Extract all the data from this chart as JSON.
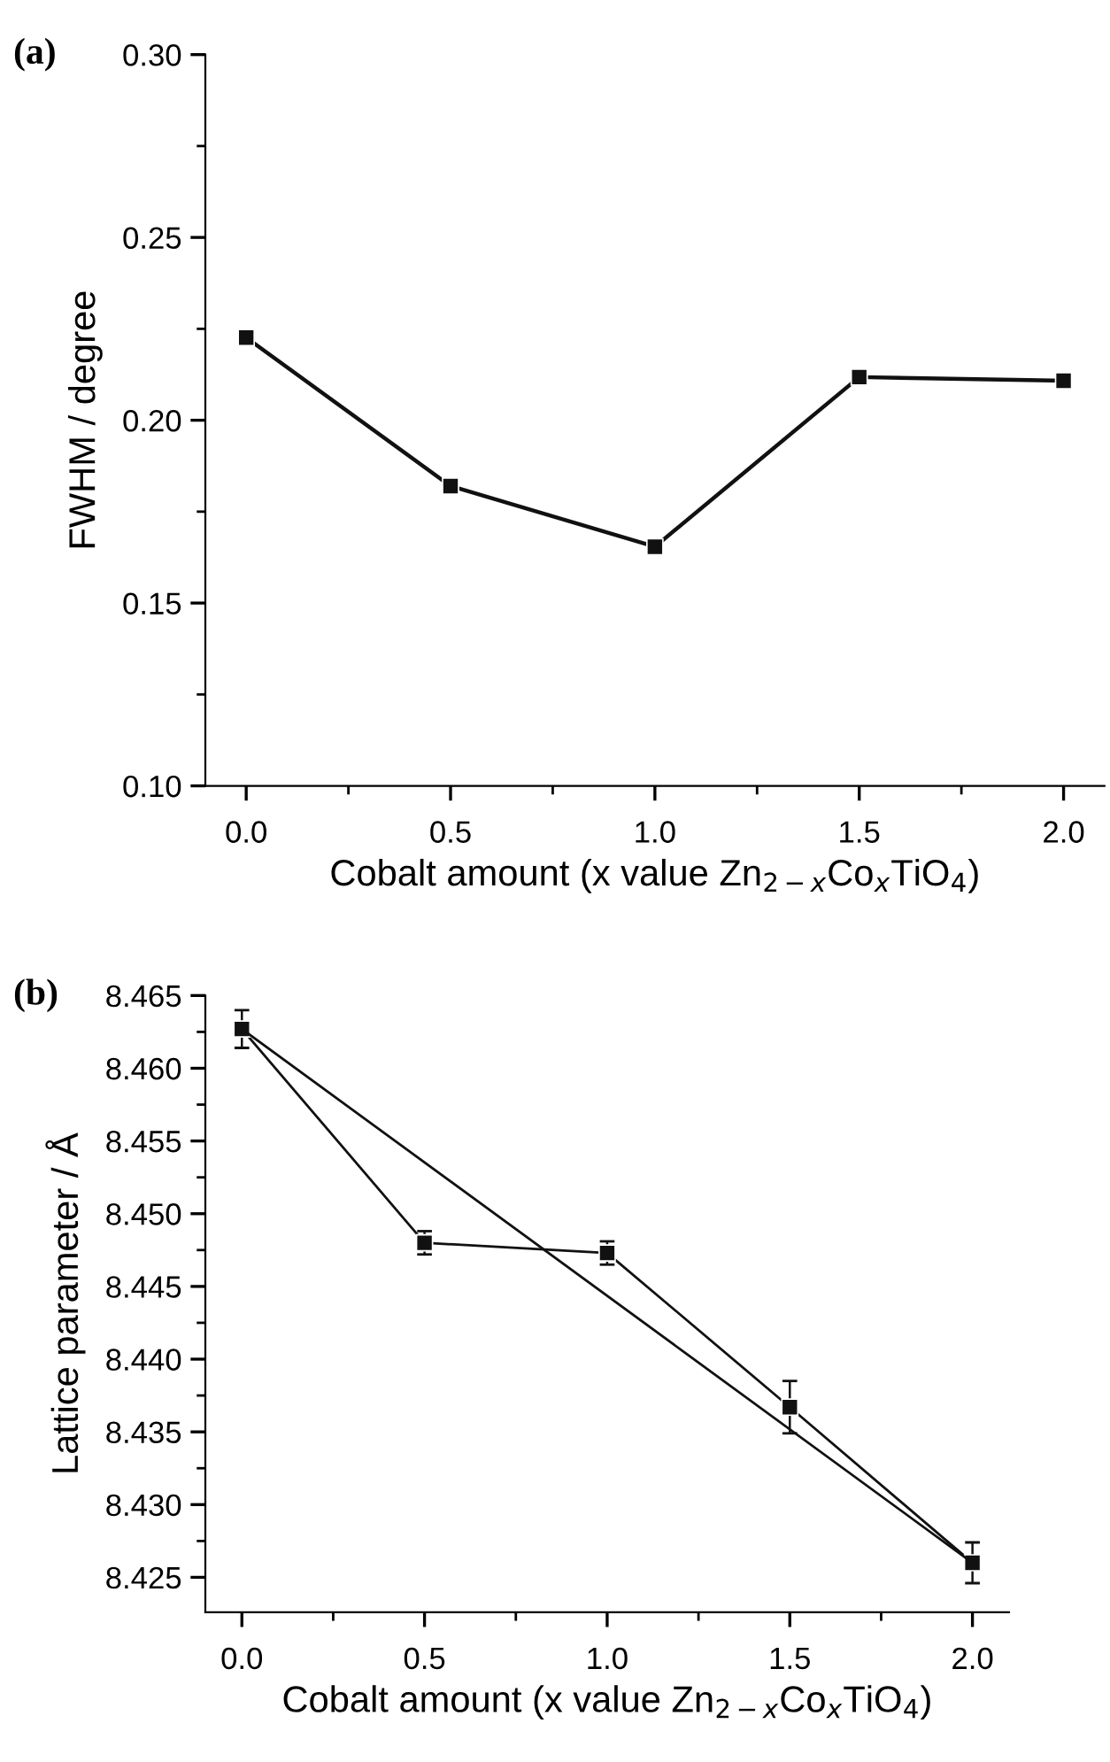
{
  "chart_data": [
    {
      "type": "line",
      "xlabel": "Cobalt amount (x value Zn$_{2−x}$Co$_{x}$TiO$_{4}$)",
      "ylabel": "FWHM / degree",
      "annotations": [
        "(a)"
      ],
      "x": [
        0.0,
        0.5,
        1.0,
        1.5,
        2.0
      ],
      "series": [
        {
          "color": "#111111",
          "values": [
            0.2226,
            0.182,
            0.1654,
            0.2118,
            0.2108
          ]
        }
      ],
      "xlim": [
        -0.1,
        2.1
      ],
      "ylim": [
        0.1,
        0.3
      ],
      "xticks": [
        {
          "value": 0,
          "label": "0.0"
        },
        {
          "value": 0.5,
          "label": "0.5"
        },
        {
          "value": 1,
          "label": "1.0"
        },
        {
          "value": 1.5,
          "label": "1.5"
        },
        {
          "value": 2,
          "label": "2.0"
        },
        {
          "value": 0.25,
          "label": null
        },
        {
          "value": 0.75,
          "label": null
        },
        {
          "value": 1.25,
          "label": null
        },
        {
          "value": 1.75,
          "label": null
        }
      ],
      "yticks": [
        {
          "value": 0.1,
          "label": "0.10"
        },
        {
          "value": 0.15,
          "label": "0.15"
        },
        {
          "value": 0.2,
          "label": "0.20"
        },
        {
          "value": 0.25,
          "label": "0.25"
        },
        {
          "value": 0.3,
          "label": "0.30"
        },
        {
          "value": 0.125,
          "label": null
        },
        {
          "value": 0.175,
          "label": null
        },
        {
          "value": 0.225,
          "label": null
        },
        {
          "value": 0.275,
          "label": null
        }
      ],
      "marker": "square",
      "line_style": "solid"
    },
    {
      "type": "line",
      "xlabel": "Cobalt amount (x value Zn$_{2−x}$Co$_{x}$TiO$_{4}$)",
      "ylabel": "Lattice parameter / Å",
      "annotations": [
        "(b)"
      ],
      "x": [
        0.0,
        0.5,
        1.0,
        1.5,
        2.0
      ],
      "series": [
        {
          "color": "#111111",
          "values": [
            8.4627,
            8.448,
            8.4473,
            8.4367,
            8.426
          ],
          "errors": [
            0.0013,
            0.0008,
            0.0008,
            0.0018,
            0.0014
          ],
          "marker": "square"
        },
        {
          "color": "#111111",
          "x": [
            0.0,
            2.0
          ],
          "values": [
            8.4627,
            8.426
          ],
          "marker": "none"
        }
      ],
      "xlim": [
        -0.1,
        2.1
      ],
      "ylim": [
        8.4226,
        8.465
      ],
      "xticks": [
        {
          "value": 0,
          "label": "0.0"
        },
        {
          "value": 0.5,
          "label": "0.5"
        },
        {
          "value": 1,
          "label": "1.0"
        },
        {
          "value": 1.5,
          "label": "1.5"
        },
        {
          "value": 2,
          "label": "2.0"
        },
        {
          "value": 0.25,
          "label": null
        },
        {
          "value": 0.75,
          "label": null
        },
        {
          "value": 1.25,
          "label": null
        },
        {
          "value": 1.75,
          "label": null
        }
      ],
      "yticks": [
        {
          "value": 8.425,
          "label": "8.425"
        },
        {
          "value": 8.43,
          "label": "8.430"
        },
        {
          "value": 8.435,
          "label": "8.435"
        },
        {
          "value": 8.44,
          "label": "8.440"
        },
        {
          "value": 8.445,
          "label": "8.445"
        },
        {
          "value": 8.45,
          "label": "8.450"
        },
        {
          "value": 8.455,
          "label": "8.455"
        },
        {
          "value": 8.46,
          "label": "8.460"
        },
        {
          "value": 8.465,
          "label": "8.465"
        },
        {
          "value": 8.4275,
          "label": null
        },
        {
          "value": 8.4325,
          "label": null
        },
        {
          "value": 8.4375,
          "label": null
        },
        {
          "value": 8.4425,
          "label": null
        },
        {
          "value": 8.4475,
          "label": null
        },
        {
          "value": 8.4525,
          "label": null
        },
        {
          "value": 8.4575,
          "label": null
        },
        {
          "value": 8.4625,
          "label": null
        }
      ],
      "line_style": "solid"
    }
  ]
}
